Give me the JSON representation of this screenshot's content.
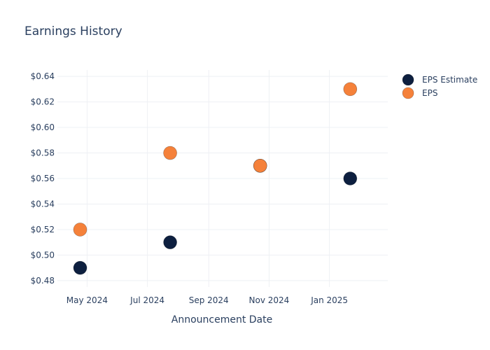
{
  "chart_data": {
    "type": "scatter",
    "title": "Earnings History",
    "xlabel": "Announcement Date",
    "ylabel": "",
    "x_ticks": [
      {
        "date": "2024-05-01",
        "label": "May 2024"
      },
      {
        "date": "2024-07-01",
        "label": "Jul 2024"
      },
      {
        "date": "2024-09-01",
        "label": "Sep 2024"
      },
      {
        "date": "2024-11-01",
        "label": "Nov 2024"
      },
      {
        "date": "2025-01-01",
        "label": "Jan 2025"
      }
    ],
    "y_ticks": [
      {
        "value": 0.48,
        "label": "$0.48"
      },
      {
        "value": 0.5,
        "label": "$0.50"
      },
      {
        "value": 0.52,
        "label": "$0.52"
      },
      {
        "value": 0.54,
        "label": "$0.54"
      },
      {
        "value": 0.56,
        "label": "$0.56"
      },
      {
        "value": 0.58,
        "label": "$0.58"
      },
      {
        "value": 0.6,
        "label": "$0.60"
      },
      {
        "value": 0.62,
        "label": "$0.62"
      },
      {
        "value": 0.64,
        "label": "$0.64"
      }
    ],
    "xlim": [
      "2024-04-01",
      "2025-03-01"
    ],
    "ylim": [
      0.475,
      0.645
    ],
    "grid": true,
    "legend_position": "top-right",
    "series": [
      {
        "name": "EPS Estimate",
        "color": "#0d1f3f",
        "points": [
          {
            "x": "2024-04-24",
            "y": 0.49
          },
          {
            "x": "2024-07-24",
            "y": 0.51
          },
          {
            "x": "2024-10-23",
            "y": 0.57
          },
          {
            "x": "2025-01-22",
            "y": 0.56
          }
        ]
      },
      {
        "name": "EPS",
        "color": "#f5813a",
        "points": [
          {
            "x": "2024-04-24",
            "y": 0.52
          },
          {
            "x": "2024-07-24",
            "y": 0.58
          },
          {
            "x": "2024-10-23",
            "y": 0.57
          },
          {
            "x": "2025-01-22",
            "y": 0.63
          }
        ]
      }
    ]
  }
}
